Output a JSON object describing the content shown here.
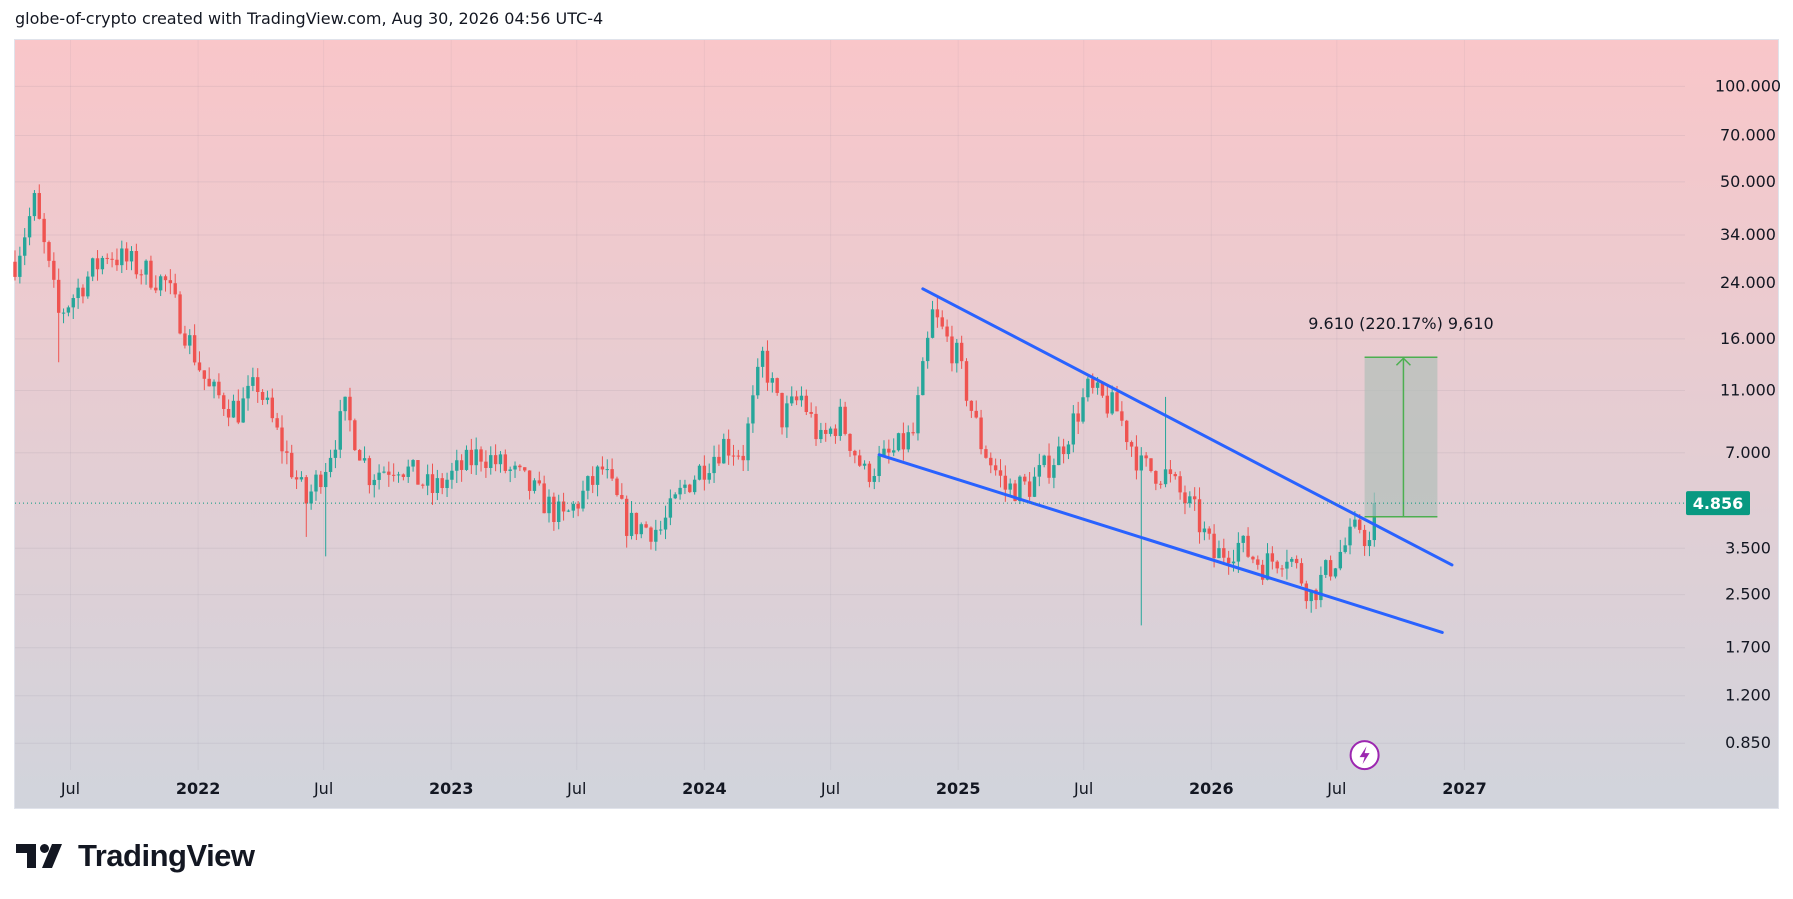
{
  "header": {
    "author": "globe-of-crypto",
    "created_with": "created with TradingView.com,",
    "timestamp": "Aug 30, 2026 04:56 UTC-4"
  },
  "brand": {
    "name": "TradingView",
    "logo_icon": "tradingview-logo-icon"
  },
  "chart_data": {
    "type": "candlestick",
    "interval": "weekly",
    "scale": "log",
    "current_price": 4.856,
    "current_price_label": "4.856",
    "y_ticks": [
      "100.000",
      "70.000",
      "50.000",
      "34.000",
      "24.000",
      "16.000",
      "11.000",
      "7.000",
      "3.500",
      "2.500",
      "1.700",
      "1.200",
      "0.850"
    ],
    "y_tick_values": [
      100,
      70,
      50,
      34,
      24,
      16,
      11,
      7,
      3.5,
      2.5,
      1.7,
      1.2,
      0.85
    ],
    "ylim": [
      0.7,
      140
    ],
    "x_ticks": [
      {
        "label": "Jul",
        "date": "2021-07-01",
        "bold": false
      },
      {
        "label": "2022",
        "date": "2022-01-01",
        "bold": true
      },
      {
        "label": "Jul",
        "date": "2022-07-01",
        "bold": false
      },
      {
        "label": "2023",
        "date": "2023-01-01",
        "bold": true
      },
      {
        "label": "Jul",
        "date": "2023-07-01",
        "bold": false
      },
      {
        "label": "2024",
        "date": "2024-01-01",
        "bold": true
      },
      {
        "label": "Jul",
        "date": "2024-07-01",
        "bold": false
      },
      {
        "label": "2025",
        "date": "2025-01-01",
        "bold": true
      },
      {
        "label": "Jul",
        "date": "2025-07-01",
        "bold": false
      },
      {
        "label": "2026",
        "date": "2026-01-01",
        "bold": true
      },
      {
        "label": "Jul",
        "date": "2026-07-01",
        "bold": false
      },
      {
        "label": "2027",
        "date": "2027-01-01",
        "bold": true
      }
    ],
    "xlim": [
      "2021-04-12",
      "2027-11-15"
    ],
    "colors": {
      "up": "#26a69a",
      "down": "#ef5350",
      "trendline": "#2962ff",
      "target_zone": "#b2bfb9",
      "target_arrow": "#4caf50",
      "price_tag": "#089981",
      "bg_top": "#f9c6c9",
      "bg_bottom": "#d1d4dc"
    },
    "anchors": [
      [
        "2021-04-12",
        28
      ],
      [
        "2021-05-10",
        43
      ],
      [
        "2021-06-14",
        19
      ],
      [
        "2021-07-19",
        24
      ],
      [
        "2021-08-23",
        30
      ],
      [
        "2021-10-04",
        27
      ],
      [
        "2021-11-15",
        24
      ],
      [
        "2021-12-13",
        17
      ],
      [
        "2022-01-17",
        11
      ],
      [
        "2022-02-28",
        9.5
      ],
      [
        "2022-03-28",
        11.5
      ],
      [
        "2022-04-25",
        8
      ],
      [
        "2022-06-06",
        4.9
      ],
      [
        "2022-07-04",
        6.5
      ],
      [
        "2022-08-01",
        9.5
      ],
      [
        "2022-09-05",
        6
      ],
      [
        "2022-10-17",
        6.5
      ],
      [
        "2022-12-05",
        5.3
      ],
      [
        "2023-02-13",
        7
      ],
      [
        "2023-04-10",
        5.8
      ],
      [
        "2023-06-12",
        4.3
      ],
      [
        "2023-08-07",
        6.2
      ],
      [
        "2023-09-11",
        4.2
      ],
      [
        "2023-10-30",
        4.0
      ],
      [
        "2023-12-04",
        5.5
      ],
      [
        "2024-01-29",
        7.5
      ],
      [
        "2024-02-26",
        7
      ],
      [
        "2024-03-25",
        14
      ],
      [
        "2024-04-22",
        9
      ],
      [
        "2024-05-20",
        10.5
      ],
      [
        "2024-06-17",
        7.5
      ],
      [
        "2024-07-15",
        9
      ],
      [
        "2024-08-19",
        6
      ],
      [
        "2024-09-30",
        7
      ],
      [
        "2024-10-28",
        8
      ],
      [
        "2024-11-25",
        19
      ],
      [
        "2024-12-30",
        14
      ],
      [
        "2025-02-03",
        7.5
      ],
      [
        "2025-03-10",
        5.4
      ],
      [
        "2025-04-14",
        5.5
      ],
      [
        "2025-05-26",
        7
      ],
      [
        "2025-07-07",
        11
      ],
      [
        "2025-08-18",
        9.5
      ],
      [
        "2025-09-22",
        6.3
      ],
      [
        "2025-10-27",
        6
      ],
      [
        "2025-12-08",
        4.5
      ],
      [
        "2026-01-05",
        3.3
      ],
      [
        "2026-02-09",
        3.6
      ],
      [
        "2026-03-16",
        3.1
      ],
      [
        "2026-04-20",
        3.4
      ],
      [
        "2026-05-25",
        2.5
      ],
      [
        "2026-07-06",
        3.4
      ],
      [
        "2026-08-03",
        4.1
      ],
      [
        "2026-08-17",
        3.6
      ],
      [
        "2026-08-24",
        4.856
      ]
    ],
    "spikes": [
      [
        "2025-09-22",
        2.0
      ],
      [
        "2025-10-27",
        10.5
      ],
      [
        "2021-06-14",
        13.5
      ],
      [
        "2022-06-06",
        3.8
      ],
      [
        "2022-07-04",
        3.3
      ]
    ],
    "trendlines": [
      {
        "name": "upper",
        "from": [
          "2024-11-11",
          23
        ],
        "to": [
          "2026-12-14",
          3.1
        ]
      },
      {
        "name": "lower",
        "from": [
          "2024-09-09",
          6.9
        ],
        "to": [
          "2026-11-30",
          1.9
        ]
      }
    ],
    "measure": {
      "label": "9.610 (220.17%) 9,610",
      "x_from": "2026-08-10",
      "x_to": "2026-11-23",
      "y_from": 4.4,
      "y_to": 14.0,
      "arrow_x": "2026-10-05"
    },
    "icons": [
      {
        "name": "lightning-event-icon",
        "date": "2026-08-10",
        "value": 0.78
      }
    ]
  }
}
